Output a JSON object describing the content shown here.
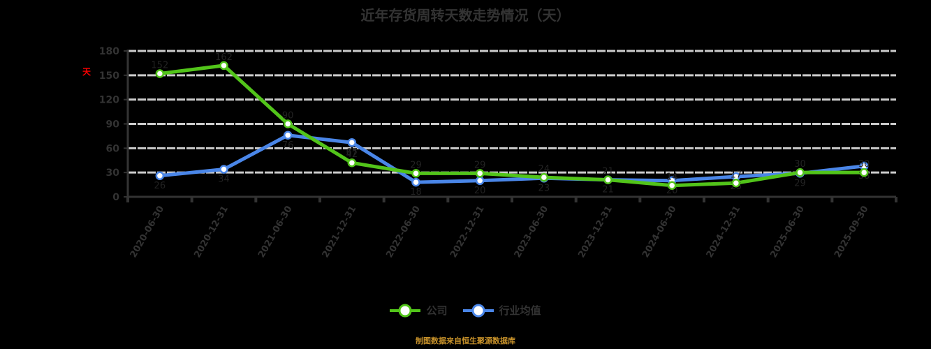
{
  "title": "近年存货周转天数走势情况（天）",
  "unit_label": "天",
  "footer": "制图数据来自恒生聚源数据库",
  "colors": {
    "company": "#52c41a",
    "industry": "#4a86e8",
    "grid": "#cccccc",
    "axis": "#333333",
    "footer": "#c8922a",
    "unit": "#ff0000"
  },
  "legend": [
    {
      "name": "公司",
      "color": "#52c41a"
    },
    {
      "name": "行业均值",
      "color": "#4a86e8"
    }
  ],
  "chart_data": {
    "type": "line",
    "title": "近年存货周转天数走势情况（天）",
    "xlabel": "",
    "ylabel": "天",
    "ylim": [
      0,
      180
    ],
    "yticks": [
      0,
      30,
      60,
      90,
      120,
      150,
      180
    ],
    "grid": true,
    "legend_position": "bottom",
    "categories": [
      "2020-06-30",
      "2020-12-31",
      "2021-06-30",
      "2021-12-31",
      "2022-06-30",
      "2022-12-31",
      "2023-06-30",
      "2023-12-31",
      "2024-06-30",
      "2024-12-31",
      "2025-06-30",
      "2025-09-30"
    ],
    "series": [
      {
        "name": "公司",
        "values": [
          152,
          162,
          90,
          42,
          29,
          29,
          24,
          21,
          14,
          17,
          30,
          30
        ]
      },
      {
        "name": "行业均值",
        "values": [
          26,
          34,
          76,
          67,
          18,
          20,
          23,
          21,
          20,
          25,
          29,
          38
        ]
      }
    ]
  }
}
